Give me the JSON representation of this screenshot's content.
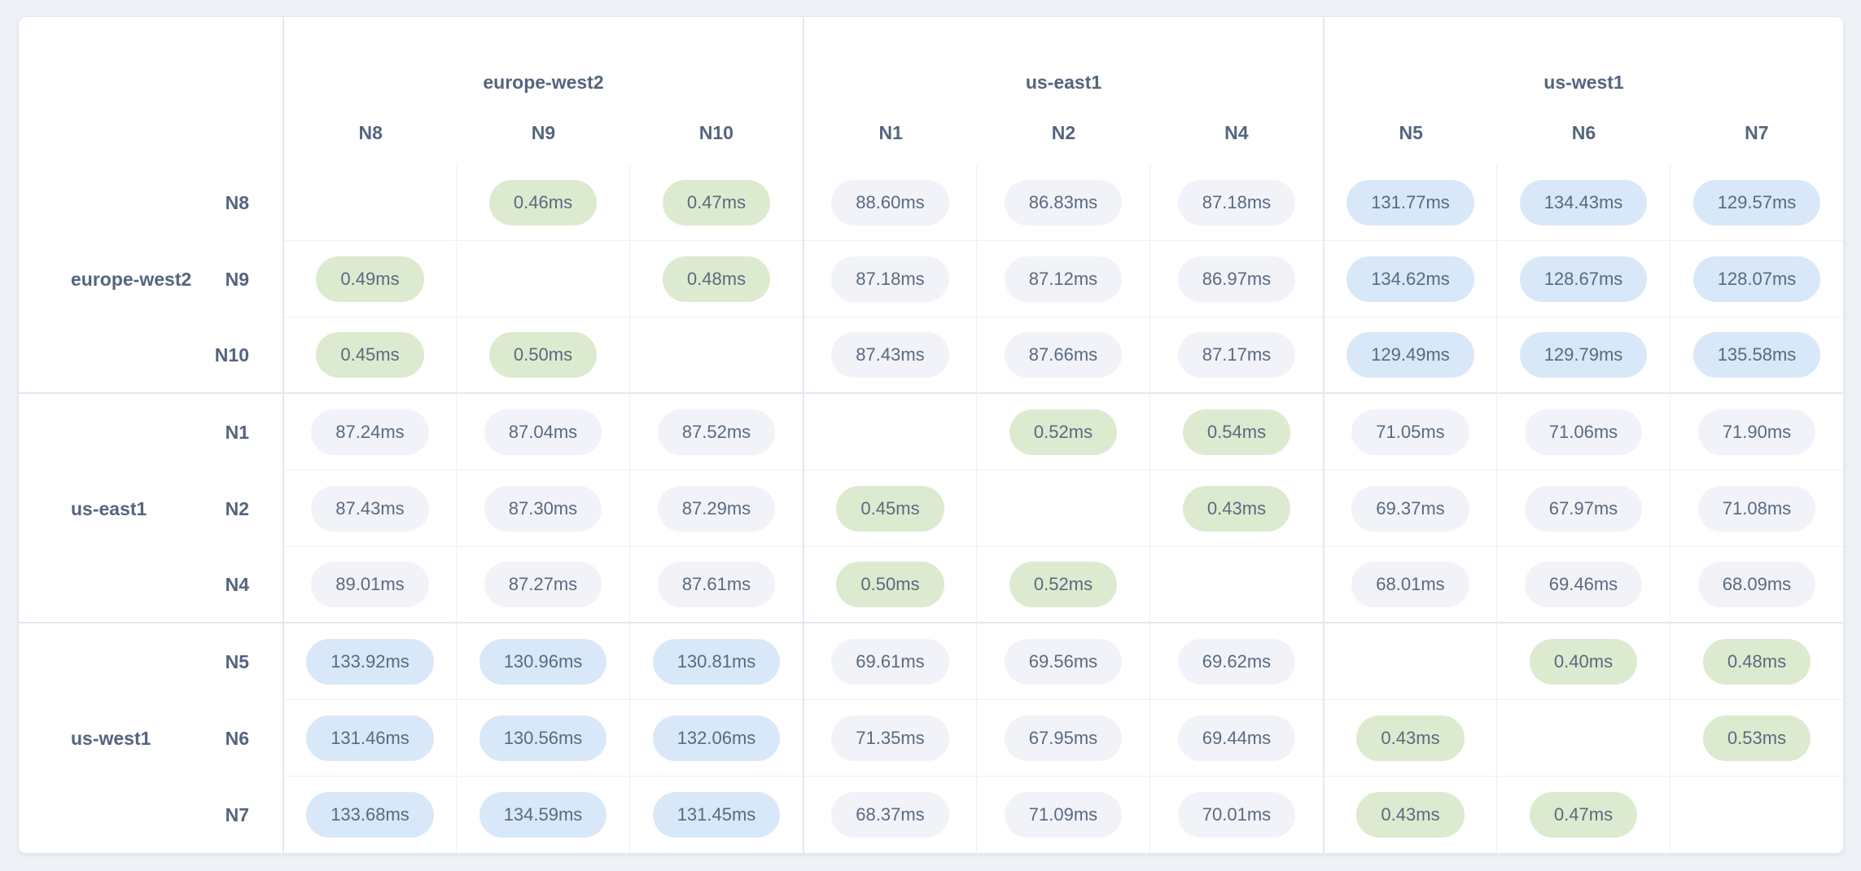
{
  "theme": {
    "page_bg": "#eff1f7",
    "card_bg": "#ffffff",
    "card_border": "#e3e7f0",
    "grid_line_heavy": "#e3e8f0",
    "grid_line_light": "#edf0f6",
    "label_color": "#54657e",
    "pill_text_color": "#5a6a80",
    "pill_green_bg": "#dcebcf",
    "pill_gray_bg": "#f1f3f8",
    "pill_blue_bg": "#d9e8f8"
  },
  "chart_data": {
    "type": "heatmap",
    "title": "",
    "unit": "ms",
    "value_suffix": "ms",
    "column_groups": [
      {
        "label": "europe-west2",
        "columns": [
          "N8",
          "N9",
          "N10"
        ]
      },
      {
        "label": "us-east1",
        "columns": [
          "N1",
          "N2",
          "N4"
        ]
      },
      {
        "label": "us-west1",
        "columns": [
          "N5",
          "N6",
          "N7"
        ]
      }
    ],
    "row_groups": [
      {
        "label": "europe-west2",
        "rows": [
          "N8",
          "N9",
          "N10"
        ]
      },
      {
        "label": "us-east1",
        "rows": [
          "N1",
          "N2",
          "N4"
        ]
      },
      {
        "label": "us-west1",
        "rows": [
          "N5",
          "N6",
          "N7"
        ]
      }
    ],
    "columns": [
      "N8",
      "N9",
      "N10",
      "N1",
      "N2",
      "N4",
      "N5",
      "N6",
      "N7"
    ],
    "rows": [
      "N8",
      "N9",
      "N10",
      "N1",
      "N2",
      "N4",
      "N5",
      "N6",
      "N7"
    ],
    "values_ms": [
      [
        null,
        0.46,
        0.47,
        88.6,
        86.83,
        87.18,
        131.77,
        134.43,
        129.57
      ],
      [
        0.49,
        null,
        0.48,
        87.18,
        87.12,
        86.97,
        134.62,
        128.67,
        128.07
      ],
      [
        0.45,
        0.5,
        null,
        87.43,
        87.66,
        87.17,
        129.49,
        129.79,
        135.58
      ],
      [
        87.24,
        87.04,
        87.52,
        null,
        0.52,
        0.54,
        71.05,
        71.06,
        71.9
      ],
      [
        87.43,
        87.3,
        87.29,
        0.45,
        null,
        0.43,
        69.37,
        67.97,
        71.08
      ],
      [
        89.01,
        87.27,
        87.61,
        0.5,
        0.52,
        null,
        68.01,
        69.46,
        68.09
      ],
      [
        133.92,
        130.96,
        130.81,
        69.61,
        69.56,
        69.62,
        null,
        0.4,
        0.48
      ],
      [
        131.46,
        130.56,
        132.06,
        71.35,
        67.95,
        69.44,
        0.43,
        null,
        0.53
      ],
      [
        133.68,
        134.59,
        131.45,
        68.37,
        71.09,
        70.01,
        0.43,
        0.47,
        null
      ]
    ],
    "tone_thresholds": {
      "green_below_ms": 1,
      "gray_below_ms": 100,
      "blue_at_or_above_ms": 100
    }
  }
}
